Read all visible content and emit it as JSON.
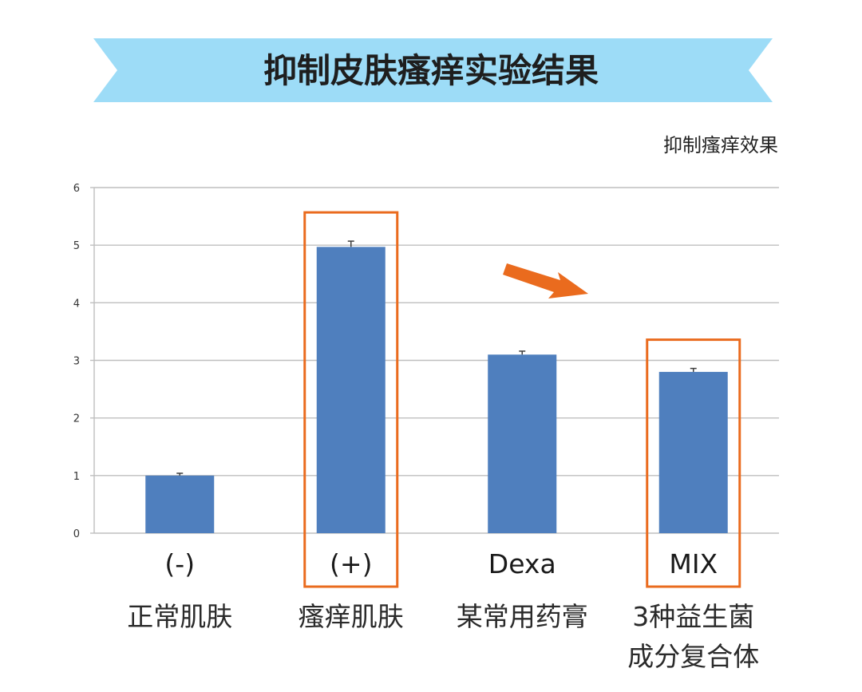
{
  "banner": {
    "title": "抑制皮肤瘙痒实验结果"
  },
  "colors": {
    "banner_fill": "#9ddcf7",
    "bar_fill": "#4f7fbe",
    "highlight_border": "#ea6b1e",
    "arrow": "#ea6b1e",
    "grid": "#bfbfbf"
  },
  "chart_data": {
    "type": "bar",
    "title": "抑制皮肤瘙痒实验结果",
    "ylabel": "抑制瘙痒效果",
    "xlabel": "",
    "ylim": [
      0,
      6
    ],
    "yticks": [
      "0",
      "1",
      "2",
      "3",
      "4",
      "5",
      "6"
    ],
    "grid": true,
    "categories": [
      {
        "symbol": "(-)",
        "lines": [
          "正常肌肤"
        ]
      },
      {
        "symbol": "(+)",
        "lines": [
          "瘙痒肌肤"
        ]
      },
      {
        "symbol": "Dexa",
        "lines": [
          "某常用药膏"
        ]
      },
      {
        "symbol": "MIX",
        "lines": [
          "3种益生菌",
          "成分复合体"
        ]
      }
    ],
    "values": [
      1.0,
      4.97,
      3.1,
      2.8
    ],
    "errors": [
      0.04,
      0.1,
      0.06,
      0.06
    ],
    "highlighted": [
      "(+)",
      "MIX"
    ],
    "annotation": "downward-arrow"
  }
}
